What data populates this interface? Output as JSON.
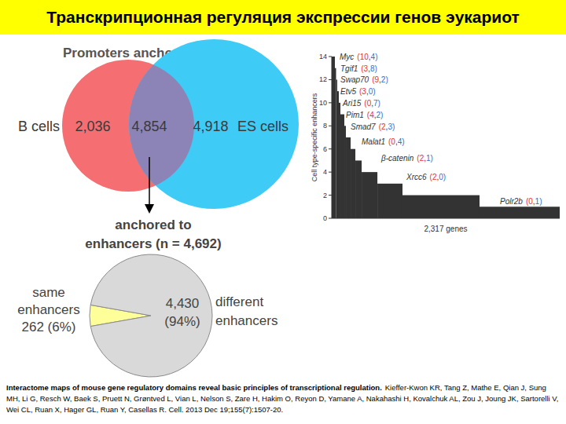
{
  "slide": {
    "title": "Транскрипционная регуляция экспрессии генов эукариот",
    "citation_title": "Interactome maps of mouse gene regulatory domains reveal basic principles of transcriptional regulation.",
    "citation": "Kieffer-Kwon KR, Tang Z, Mathe E, Qian J, Sung MH, Li G, Resch W, Baek S, Pruett N, Grøntved L, Vian L, Nelson S, Zare H, Hakim O, Reyon D, Yamane A, Nakahashi H, Kovalchuk AL, Zou J, Joung JK, Sartorelli V, Wei CL, Ruan X, Hager GL, Ruan Y, Casellas R. Cell. 2013 Dec 19;155(7):1507-20."
  },
  "chart_data": [
    {
      "type": "venn",
      "title": "Promoters anchored in:",
      "sets": [
        "B cells",
        "ES cells"
      ],
      "values": [
        2036,
        4854,
        4918
      ],
      "value_labels": [
        "2,036",
        "4,854",
        "4,918"
      ],
      "colors": [
        "#f46e72",
        "#8c84b6",
        "#3ecbf5"
      ]
    },
    {
      "type": "pie",
      "title": "anchored to\nenhancers (n = 4,692)",
      "categories": [
        "same enhancers",
        "different enhancers"
      ],
      "values": [
        262,
        4430
      ],
      "value_labels": [
        "262 (6%)",
        "4,430 (94%)"
      ],
      "colors": [
        "#ffff99",
        "#d9d9d9"
      ]
    },
    {
      "type": "histogram",
      "ylabel": "Cell type-specific enhancers",
      "xlabel": "2,317 genes",
      "bins": [
        0,
        32,
        44,
        56,
        72,
        88,
        128,
        144,
        192,
        240,
        304,
        464,
        719,
        1502,
        2317
      ],
      "values": [
        14,
        13,
        12,
        11,
        10,
        9,
        8,
        7,
        6,
        5,
        4,
        3,
        2,
        1
      ],
      "xlim": [
        0,
        2317
      ],
      "ylim": [
        0,
        14
      ],
      "yticks": [
        0,
        2,
        4,
        6,
        8,
        10,
        12,
        14
      ],
      "tick_labels": "y",
      "color": "#333333",
      "annotations": [
        {
          "label": "Myc",
          "note": "(10,4)"
        },
        {
          "label": "Tgif1",
          "note": "(3,8)"
        },
        {
          "label": "Swap70",
          "note": "(9,2)"
        },
        {
          "label": "Etv5",
          "note": "(3,0)"
        },
        {
          "label": "Ari15",
          "note": "(0,7)"
        },
        {
          "label": "Pim1",
          "note": "(4,2)"
        },
        {
          "label": "Smad7",
          "note": "(2,3)"
        },
        {
          "label": "Malat1",
          "note": "(0,4)"
        },
        {
          "label": "β-catenin",
          "note": "(2,1)"
        },
        {
          "label": "Xrcc6",
          "note": "(2,0)"
        },
        {
          "label": "Polr2b",
          "note": "(0,1)"
        }
      ]
    }
  ]
}
